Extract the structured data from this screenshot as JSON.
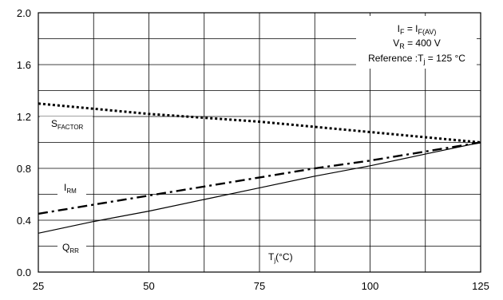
{
  "chart_data": {
    "type": "line",
    "xlabel": "",
    "ylabel": "",
    "xlim": [
      25,
      125
    ],
    "ylim": [
      0.0,
      2.0
    ],
    "x_ticks": [
      25,
      50,
      75,
      100,
      125
    ],
    "y_ticks": [
      0.0,
      0.4,
      0.8,
      1.2,
      1.6,
      2.0
    ],
    "y_tick_labels": [
      "0.0",
      "0.4",
      "0.8",
      "1.2",
      "1.6",
      "2.0"
    ],
    "x_minor_step": 12.5,
    "y_minor_step": 0.2,
    "grid": true,
    "series": [
      {
        "key": "sfactor",
        "label_main": "S",
        "label_sub": "FACTOR",
        "style": "dotted",
        "x": [
          25,
          37.5,
          50,
          62.5,
          75,
          87.5,
          100,
          112.5,
          125
        ],
        "y": [
          1.3,
          1.26,
          1.22,
          1.19,
          1.16,
          1.12,
          1.08,
          1.04,
          1.0
        ]
      },
      {
        "key": "irm",
        "label_main": "I",
        "label_sub": "RM",
        "style": "dashdot",
        "x": [
          25,
          37.5,
          50,
          62.5,
          75,
          87.5,
          100,
          112.5,
          125
        ],
        "y": [
          0.45,
          0.52,
          0.59,
          0.66,
          0.73,
          0.8,
          0.86,
          0.93,
          1.0
        ]
      },
      {
        "key": "qrr",
        "label_main": "Q",
        "label_sub": "RR",
        "style": "solid",
        "x": [
          25,
          37.5,
          50,
          62.5,
          75,
          87.5,
          100,
          112.5,
          125
        ],
        "y": [
          0.3,
          0.39,
          0.47,
          0.56,
          0.65,
          0.74,
          0.82,
          0.91,
          1.0
        ]
      }
    ],
    "annotations": {
      "tj_main": "T",
      "tj_sub": "j",
      "tj_rest": "(°C)",
      "legend_box": {
        "line1_main": "I",
        "line1_sub1": "F",
        "line1_mid": " = I",
        "line1_sub2": "F(AV)",
        "line2_main": "V",
        "line2_sub": "R",
        "line2_rest": " = 400 V",
        "line3_main": "Reference :T",
        "line3_sub": "j",
        "line3_rest": " = 125 °C"
      }
    }
  }
}
